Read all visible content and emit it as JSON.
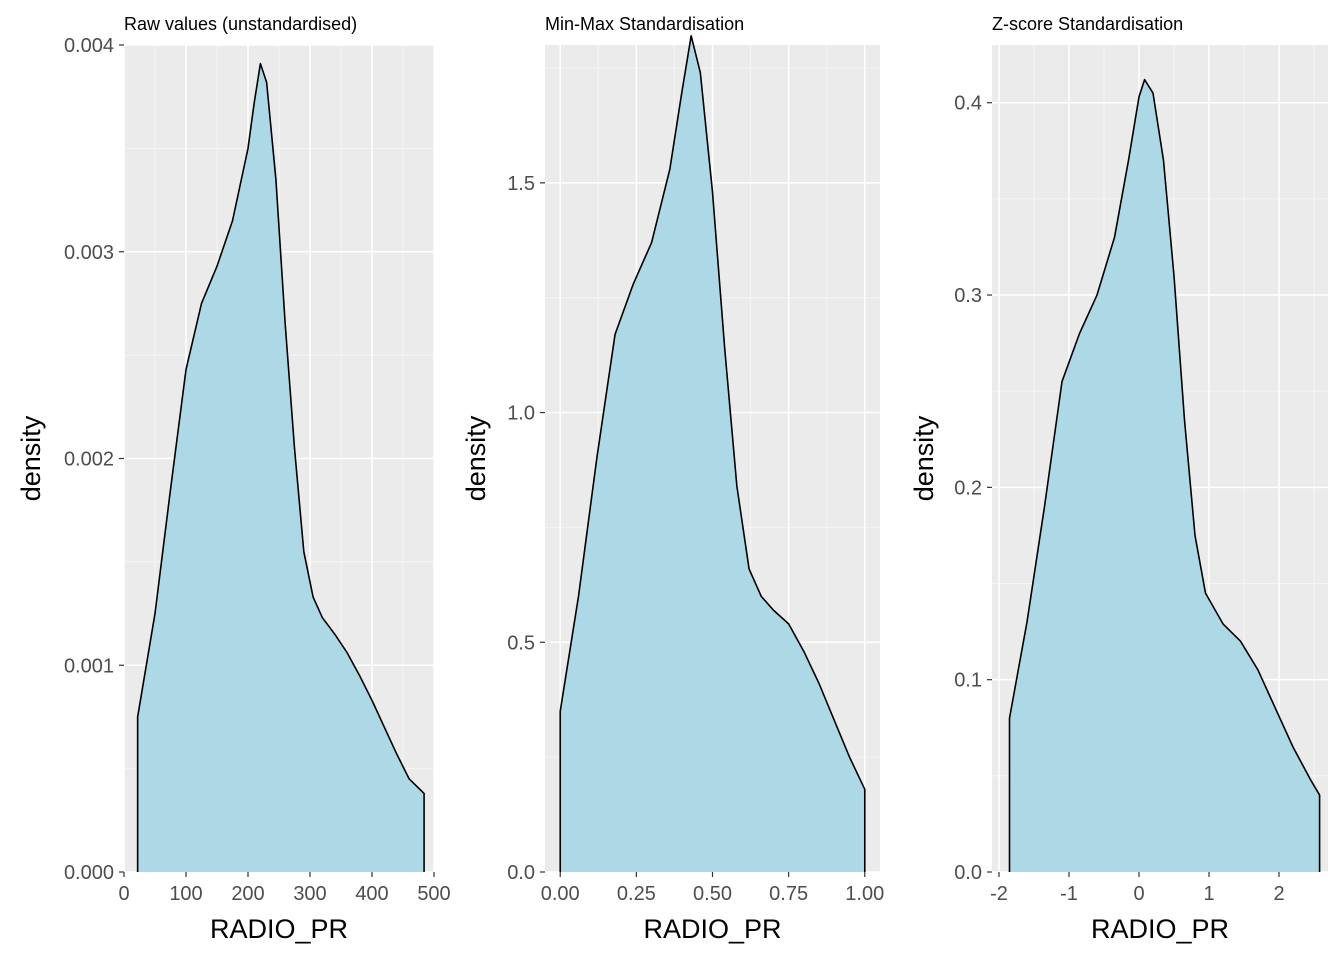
{
  "colors": {
    "panel_background": "#ebebeb",
    "grid_major": "#ffffff",
    "grid_minor": "#f5f5f5",
    "fill": "#add8e6",
    "line": "#000000",
    "tick_text": "#4d4d4d"
  },
  "chart_data": [
    {
      "type": "area",
      "title": "Raw values (unstandardised)",
      "xlabel": "RADIO_PR",
      "ylabel": "density",
      "xlim": [
        0,
        500
      ],
      "ylim": [
        0,
        0.004
      ],
      "grid": true,
      "x_ticks": [
        0,
        100,
        200,
        300,
        400,
        500
      ],
      "x_tick_labels": [
        "0",
        "100",
        "200",
        "300",
        "400",
        "500"
      ],
      "y_ticks": [
        0,
        0.001,
        0.002,
        0.003,
        0.004
      ],
      "y_tick_labels": [
        "0.000",
        "0.001",
        "0.002",
        "0.003",
        "0.004"
      ],
      "x": [
        22,
        50,
        75,
        100,
        125,
        150,
        175,
        200,
        210,
        220,
        230,
        245,
        260,
        275,
        290,
        305,
        320,
        340,
        360,
        380,
        400,
        420,
        440,
        460,
        484
      ],
      "y": [
        0.00075,
        0.00125,
        0.00185,
        0.00243,
        0.00275,
        0.00293,
        0.00315,
        0.0035,
        0.00372,
        0.00391,
        0.00382,
        0.00335,
        0.00265,
        0.00205,
        0.00155,
        0.00133,
        0.00123,
        0.00115,
        0.00106,
        0.00095,
        0.00083,
        0.0007,
        0.00057,
        0.00045,
        0.00038
      ]
    },
    {
      "type": "area",
      "title": "Min-Max Standardisation",
      "xlabel": "RADIO_PR",
      "ylabel": "density",
      "xlim": [
        -0.05,
        1.05
      ],
      "ylim": [
        0,
        1.8
      ],
      "grid": true,
      "x_ticks": [
        0,
        0.25,
        0.5,
        0.75,
        1.0
      ],
      "x_tick_labels": [
        "0.00",
        "0.25",
        "0.50",
        "0.75",
        "1.00"
      ],
      "y_ticks": [
        0,
        0.5,
        1.0,
        1.5
      ],
      "y_tick_labels": [
        "0.0",
        "0.5",
        "1.0",
        "1.5"
      ],
      "x": [
        0,
        0.06,
        0.12,
        0.18,
        0.24,
        0.3,
        0.36,
        0.4,
        0.43,
        0.46,
        0.5,
        0.54,
        0.58,
        0.62,
        0.66,
        0.7,
        0.75,
        0.8,
        0.85,
        0.9,
        0.95,
        1.0
      ],
      "y": [
        0.35,
        0.6,
        0.9,
        1.17,
        1.28,
        1.37,
        1.53,
        1.7,
        1.82,
        1.74,
        1.48,
        1.14,
        0.84,
        0.66,
        0.6,
        0.57,
        0.54,
        0.48,
        0.41,
        0.33,
        0.25,
        0.18
      ]
    },
    {
      "type": "area",
      "title": "Z-score Standardisation",
      "xlabel": "RADIO_PR",
      "ylabel": "density",
      "xlim": [
        -2.1,
        2.7
      ],
      "ylim": [
        0,
        0.43
      ],
      "grid": true,
      "x_ticks": [
        -2,
        -1,
        0,
        1,
        2
      ],
      "x_tick_labels": [
        "-2",
        "-1",
        "0",
        "1",
        "2"
      ],
      "y_ticks": [
        0,
        0.1,
        0.2,
        0.3,
        0.4
      ],
      "y_tick_labels": [
        "0.0",
        "0.1",
        "0.2",
        "0.3",
        "0.4"
      ],
      "x": [
        -1.85,
        -1.6,
        -1.35,
        -1.1,
        -0.85,
        -0.6,
        -0.35,
        -0.15,
        0.0,
        0.08,
        0.2,
        0.35,
        0.5,
        0.65,
        0.8,
        0.95,
        1.2,
        1.45,
        1.7,
        1.95,
        2.2,
        2.45,
        2.58
      ],
      "y": [
        0.08,
        0.13,
        0.19,
        0.255,
        0.28,
        0.3,
        0.33,
        0.37,
        0.403,
        0.412,
        0.405,
        0.37,
        0.31,
        0.235,
        0.175,
        0.145,
        0.129,
        0.12,
        0.105,
        0.085,
        0.065,
        0.048,
        0.04
      ]
    }
  ]
}
